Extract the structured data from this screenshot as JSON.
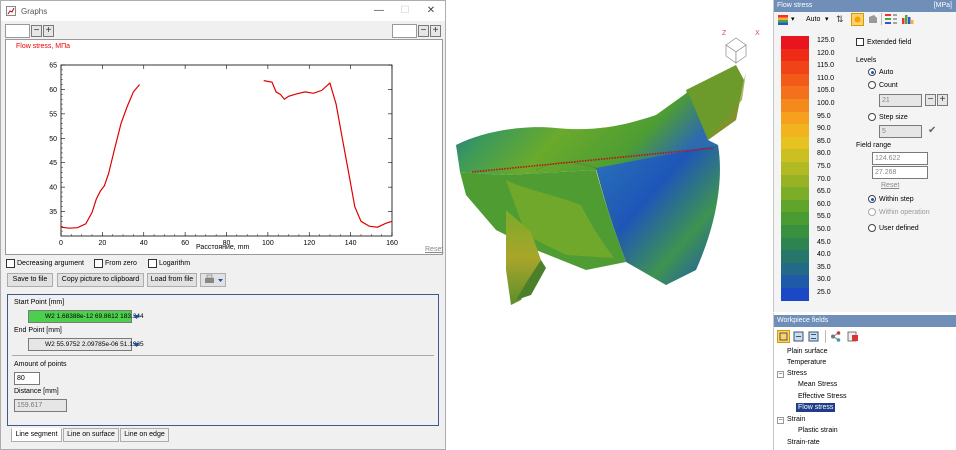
{
  "graphs": {
    "title": "Graphs",
    "chart_title": "Flow stress, МПа",
    "xlabel": "Расстояние, mm",
    "reset": "Reset",
    "options": [
      "Decreasing argument",
      "From zero",
      "Logarithm"
    ],
    "buttons": [
      "Save to file",
      "Copy picture to clipboard",
      "Load from file"
    ],
    "start_label": "Start Point [mm]",
    "start_value": "W2 1.68388e-12 69.8612 183.344",
    "end_label": "End Point [mm]",
    "end_value": "W2 55.9752 2.09785e-06 51.1935",
    "amount_label": "Amount of points",
    "amount_value": "80",
    "distance_label": "Distance [mm]",
    "distance_value": "159.617",
    "tabs": [
      "Line segment",
      "Line on surface",
      "Line on edge"
    ]
  },
  "chart_data": {
    "type": "line",
    "title": "Flow stress, МПа",
    "xlabel": "Расстояние, mm",
    "ylabel": "",
    "xlim": [
      0,
      160
    ],
    "ylim": [
      30,
      65
    ],
    "xticks": [
      0,
      20,
      40,
      60,
      80,
      100,
      120,
      140,
      160
    ],
    "yticks": [
      35,
      40,
      45,
      50,
      55,
      60,
      65
    ],
    "series": [
      {
        "segments": [
          [
            [
              0,
              31.8
            ],
            [
              4,
              31.6
            ],
            [
              8,
              31.7
            ],
            [
              12,
              32.5
            ],
            [
              15,
              34.8
            ],
            [
              17,
              37.5
            ],
            [
              19,
              39.2
            ],
            [
              21,
              40.3
            ],
            [
              23,
              42.8
            ],
            [
              26,
              48
            ],
            [
              29,
              53
            ],
            [
              32,
              56.5
            ],
            [
              35,
              59.5
            ],
            [
              38,
              61
            ]
          ],
          [
            [
              98,
              61.8
            ],
            [
              102,
              61.5
            ],
            [
              104,
              59.5
            ],
            [
              106,
              59
            ],
            [
              108,
              58
            ],
            [
              110,
              58.6
            ],
            [
              114,
              59.1
            ],
            [
              118,
              59.5
            ],
            [
              122,
              59.2
            ],
            [
              126,
              59.8
            ],
            [
              130,
              61.3
            ],
            [
              133,
              57
            ],
            [
              136,
              50
            ],
            [
              139,
              43
            ],
            [
              142,
              36
            ],
            [
              145,
              33
            ],
            [
              149,
              32
            ],
            [
              153,
              31.8
            ],
            [
              157,
              32.6
            ],
            [
              160,
              33
            ]
          ]
        ]
      }
    ]
  },
  "flow_stress": {
    "title": "Flow stress",
    "unit": "[MPa]",
    "auto": "Auto",
    "extended": "Extended field",
    "levels": "Levels",
    "auto_radio": "Auto",
    "count_radio": "Count",
    "count_value": "21",
    "step_radio": "Step size",
    "step_value": "5",
    "range_label": "Field range",
    "range_max": "124.622",
    "range_min": "27.268",
    "reset": "Reset",
    "within_step": "Within step",
    "within_op": "Within operation",
    "user_defined": "User defined",
    "scale": [
      {
        "v": "125.0",
        "c": "#e8141e"
      },
      {
        "v": "120.0",
        "c": "#ef2a17"
      },
      {
        "v": "115.0",
        "c": "#f04418"
      },
      {
        "v": "110.0",
        "c": "#f25a1a"
      },
      {
        "v": "105.0",
        "c": "#f4701c"
      },
      {
        "v": "100.0",
        "c": "#f58a1c"
      },
      {
        "v": "95.0",
        "c": "#f6a11e"
      },
      {
        "v": "90.0",
        "c": "#f1b41f"
      },
      {
        "v": "85.0",
        "c": "#e6c320"
      },
      {
        "v": "80.0",
        "c": "#cbbf21"
      },
      {
        "v": "75.0",
        "c": "#b1b923"
      },
      {
        "v": "70.0",
        "c": "#97b325"
      },
      {
        "v": "65.0",
        "c": "#7cad28"
      },
      {
        "v": "60.0",
        "c": "#61a42c"
      },
      {
        "v": "55.0",
        "c": "#4a9b32"
      },
      {
        "v": "50.0",
        "c": "#39903e"
      },
      {
        "v": "45.0",
        "c": "#2d8450"
      },
      {
        "v": "40.0",
        "c": "#26776a"
      },
      {
        "v": "35.0",
        "c": "#236a89"
      },
      {
        "v": "30.0",
        "c": "#1f5aa8"
      },
      {
        "v": "25.0",
        "c": "#1b48c4"
      }
    ]
  },
  "workpiece": {
    "title": "Workpiece fields",
    "items": [
      "Plain surface",
      "Temperature",
      "Stress",
      "Mean Stress",
      "Effective Stress",
      "Flow stress",
      "Strain",
      "Plastic strain",
      "Strain-rate"
    ]
  },
  "view": {
    "axis_x": "X",
    "axis_z": "Z"
  }
}
